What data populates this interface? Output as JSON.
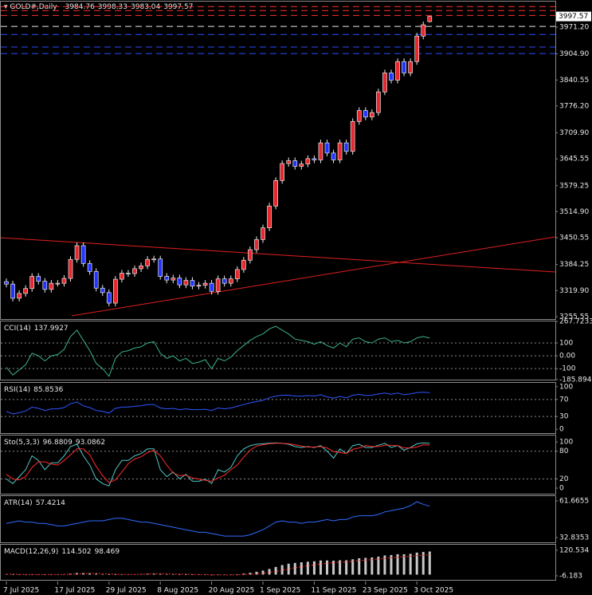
{
  "chart_data": [
    {
      "type": "candlestick",
      "title": "GOLD#,Daily",
      "categories": [
        "7 Jul 2025",
        null,
        null,
        null,
        null,
        null,
        null,
        null,
        "17 Jul 2025",
        null,
        null,
        null,
        null,
        null,
        null,
        null,
        "29 Jul 2025",
        null,
        null,
        null,
        null,
        null,
        null,
        null,
        "8 Aug 2025",
        null,
        null,
        null,
        null,
        null,
        null,
        null,
        "20 Aug 2025",
        null,
        null,
        null,
        null,
        null,
        null,
        null,
        "1 Sep 2025",
        null,
        null,
        null,
        null,
        null,
        null,
        null,
        "11 Sep 2025",
        null,
        null,
        null,
        null,
        null,
        null,
        null,
        "23 Sep 2025",
        null,
        null,
        null,
        null,
        null,
        null,
        null,
        "3 Oct 2025",
        null,
        null
      ],
      "open": [
        3342,
        3336,
        3301,
        3313,
        3325,
        3355,
        3343,
        3323,
        3338,
        3338,
        3350,
        3397,
        3431,
        3387,
        3367,
        3326,
        3315,
        3289,
        3348,
        3363,
        3362,
        3374,
        3381,
        3397,
        3398,
        3355,
        3346,
        3351,
        3334,
        3345,
        3331,
        3333,
        3338,
        3318,
        3349,
        3338,
        3349,
        3372,
        3395,
        3421,
        3446,
        3475,
        3529,
        3592,
        3634,
        3641,
        3627,
        3633,
        3646,
        3643,
        3685,
        3660,
        3643,
        3685,
        3664,
        3738,
        3765,
        3749,
        3760,
        3811,
        3858,
        3840,
        3886,
        3858,
        3886,
        3949,
        3984.76
      ],
      "high": [
        3350,
        3344,
        3321,
        3333,
        3363,
        3363,
        3351,
        3346,
        3346,
        3358,
        3405,
        3439,
        3439,
        3395,
        3375,
        3334,
        3323,
        3356,
        3371,
        3371,
        3382,
        3389,
        3405,
        3406,
        3406,
        3363,
        3359,
        3359,
        3353,
        3353,
        3341,
        3346,
        3346,
        3357,
        3357,
        3357,
        3380,
        3403,
        3429,
        3454,
        3483,
        3537,
        3600,
        3642,
        3649,
        3649,
        3641,
        3654,
        3654,
        3693,
        3693,
        3668,
        3693,
        3693,
        3746,
        3773,
        3773,
        3768,
        3819,
        3866,
        3866,
        3894,
        3894,
        3894,
        3957,
        3985,
        3998.33
      ],
      "low": [
        3328,
        3293,
        3293,
        3305,
        3317,
        3335,
        3315,
        3315,
        3330,
        3330,
        3342,
        3389,
        3379,
        3359,
        3318,
        3307,
        3281,
        3281,
        3340,
        3354,
        3354,
        3366,
        3373,
        3389,
        3347,
        3338,
        3338,
        3326,
        3326,
        3323,
        3323,
        3325,
        3310,
        3310,
        3330,
        3330,
        3341,
        3364,
        3387,
        3413,
        3438,
        3467,
        3521,
        3584,
        3626,
        3619,
        3619,
        3625,
        3635,
        3635,
        3652,
        3635,
        3635,
        3656,
        3656,
        3730,
        3741,
        3741,
        3752,
        3803,
        3832,
        3832,
        3850,
        3850,
        3878,
        3941,
        3983.04
      ],
      "close": [
        3336,
        3301,
        3313,
        3325,
        3355,
        3343,
        3323,
        3338,
        3338,
        3350,
        3397,
        3431,
        3387,
        3367,
        3326,
        3315,
        3289,
        3348,
        3363,
        3362,
        3374,
        3381,
        3397,
        3398,
        3355,
        3346,
        3351,
        3334,
        3345,
        3331,
        3333,
        3338,
        3318,
        3349,
        3338,
        3349,
        3372,
        3395,
        3421,
        3446,
        3475,
        3529,
        3592,
        3634,
        3641,
        3627,
        3633,
        3646,
        3643,
        3685,
        3660,
        3643,
        3685,
        3664,
        3738,
        3765,
        3749,
        3760,
        3811,
        3858,
        3840,
        3886,
        3858,
        3886,
        3949,
        3977,
        3997.57
      ],
      "up_color": "#e8262e",
      "down_color": "#2233ff",
      "ylim": [
        3249.6,
        4034.3
      ],
      "yticks": [
        {
          "value": 3255.55,
          "label": "3255.55"
        },
        {
          "value": 3319.9,
          "label": "3319.90"
        },
        {
          "value": 3384.25,
          "label": "3384.25"
        },
        {
          "value": 3450.55,
          "label": "3450.55"
        },
        {
          "value": 3514.9,
          "label": "3514.90"
        },
        {
          "value": 3579.25,
          "label": "3579.25"
        },
        {
          "value": 3645.55,
          "label": "3645.55"
        },
        {
          "value": 3709.9,
          "label": "3709.90"
        },
        {
          "value": 3776.2,
          "label": "3776.20"
        },
        {
          "value": 3840.55,
          "label": "3840.55"
        },
        {
          "value": 3904.9,
          "label": "3904.90"
        },
        {
          "value": 3971.2,
          "label": "3971.20"
        }
      ],
      "levels": [
        {
          "value": 4022,
          "color": "#ff3030"
        },
        {
          "value": 4012,
          "color": "#ff3030"
        },
        {
          "value": 4000,
          "color": "#ff3030"
        },
        {
          "value": 3973,
          "color": "#e8e8e8"
        },
        {
          "value": 3953,
          "color": "#2a4dff"
        },
        {
          "value": 3922,
          "color": "#2a4dff"
        },
        {
          "value": 3906,
          "color": "#2a4dff"
        }
      ]
    },
    {
      "type": "line",
      "title": "CCI(14)",
      "grid": true,
      "ylim": [
        -185.8945,
        267.7233
      ],
      "yticks": [
        -185.8945,
        -100,
        {
          "value": 0,
          "label": "0.00"
        },
        100,
        267.7233
      ],
      "series": [
        {
          "color": "#3bb08f",
          "style": "line",
          "values": [
            -90,
            -150,
            -110,
            -70,
            20,
            0,
            -40,
            0,
            10,
            50,
            150,
            200,
            120,
            40,
            -60,
            -100,
            -160,
            -20,
            30,
            40,
            60,
            70,
            100,
            110,
            20,
            -20,
            0,
            -40,
            -20,
            -60,
            -50,
            -30,
            -100,
            -20,
            -40,
            -10,
            40,
            80,
            120,
            150,
            170,
            210,
            230,
            200,
            170,
            130,
            120,
            110,
            90,
            110,
            80,
            60,
            100,
            70,
            130,
            140,
            110,
            100,
            130,
            140,
            110,
            120,
            100,
            110,
            140,
            150,
            137.9927
          ]
        }
      ]
    },
    {
      "type": "line",
      "title": "RSI(14)",
      "grid": true,
      "ylim": [
        -9,
        109
      ],
      "yticks": [
        0,
        30,
        70,
        100
      ],
      "series": [
        {
          "color": "#2f55ff",
          "style": "line",
          "values": [
            42,
            36,
            39,
            43,
            52,
            49,
            44,
            48,
            48,
            51,
            60,
            64,
            55,
            51,
            44,
            42,
            38,
            49,
            52,
            52,
            54,
            55,
            58,
            58,
            50,
            48,
            49,
            46,
            48,
            46,
            46,
            47,
            44,
            50,
            48,
            50,
            54,
            58,
            62,
            65,
            68,
            74,
            78,
            80,
            80,
            78,
            78,
            79,
            78,
            81,
            76,
            73,
            77,
            74,
            80,
            82,
            79,
            80,
            83,
            85,
            82,
            85,
            81,
            83,
            86,
            87,
            85.8536
          ]
        }
      ]
    },
    {
      "type": "line",
      "title": "Sto(5,3,3)",
      "grid": true,
      "ylim": [
        -12,
        114
      ],
      "yticks": [
        0,
        20,
        80,
        100
      ],
      "series": [
        {
          "color": "#4fc6c4",
          "style": "line",
          "values": [
            20,
            10,
            25,
            40,
            70,
            60,
            40,
            55,
            55,
            70,
            90,
            95,
            70,
            50,
            20,
            10,
            5,
            40,
            60,
            60,
            70,
            75,
            85,
            85,
            40,
            25,
            35,
            20,
            30,
            15,
            15,
            20,
            10,
            40,
            35,
            45,
            70,
            85,
            92,
            95,
            96,
            97,
            98,
            97,
            95,
            90,
            88,
            90,
            88,
            92,
            80,
            65,
            85,
            75,
            92,
            95,
            88,
            88,
            93,
            97,
            88,
            92,
            82,
            88,
            96,
            98,
            96.8809
          ]
        },
        {
          "color": "#ff2a2a",
          "style": "line",
          "values": [
            30,
            20,
            18,
            25,
            45,
            57,
            57,
            52,
            50,
            60,
            72,
            85,
            85,
            72,
            47,
            27,
            12,
            18,
            35,
            53,
            63,
            68,
            77,
            82,
            70,
            50,
            33,
            27,
            28,
            22,
            20,
            17,
            15,
            22,
            28,
            40,
            50,
            67,
            82,
            91,
            94,
            96,
            97,
            97,
            96,
            94,
            91,
            89,
            89,
            90,
            87,
            79,
            77,
            75,
            84,
            87,
            92,
            90,
            90,
            93,
            93,
            92,
            87,
            87,
            89,
            94,
            93.0862
          ]
        }
      ]
    },
    {
      "type": "line",
      "title": "ATR(14)",
      "grid": false,
      "ylim": [
        29.07,
        65.43
      ],
      "yticks": [
        32.8353,
        61.6655
      ],
      "series": [
        {
          "color": "#2f6cff",
          "style": "line",
          "values": [
            44,
            45,
            46,
            45,
            45,
            44,
            44,
            43,
            42,
            42,
            43,
            44,
            45,
            46,
            46,
            46,
            47,
            48,
            48,
            47,
            46,
            45,
            45,
            44,
            43,
            42,
            41,
            40,
            39,
            38,
            37,
            37,
            36,
            35,
            34,
            34,
            34,
            34,
            35,
            37,
            39,
            42,
            45,
            46,
            45,
            45,
            44,
            45,
            45,
            46,
            47,
            46,
            47,
            47,
            49,
            50,
            50,
            50,
            51,
            53,
            54,
            55,
            56,
            58,
            61,
            59,
            57.4214
          ]
        }
      ]
    },
    {
      "type": "bar",
      "title": "MACD(12,26,9)",
      "grid": false,
      "ylim": [
        -26,
        148
      ],
      "yticks": [
        -6.183,
        120.534
      ],
      "series": [
        {
          "color": "#c8c8c8",
          "style": "bar",
          "values": [
            2,
            0,
            -1,
            -1,
            0,
            1,
            0,
            0,
            1,
            2,
            5,
            8,
            8,
            7,
            4,
            1,
            -2,
            -1,
            0,
            1,
            2,
            3,
            5,
            6,
            4,
            2,
            1,
            0,
            0,
            -1,
            -2,
            -2,
            -3,
            -2,
            -2,
            -1,
            2,
            5,
            9,
            14,
            20,
            28,
            38,
            47,
            54,
            58,
            61,
            64,
            66,
            70,
            70,
            69,
            71,
            71,
            76,
            81,
            83,
            85,
            89,
            95,
            97,
            101,
            101,
            103,
            109,
            112,
            114.502
          ]
        },
        {
          "color": "#ff2a2a",
          "style": "dotted",
          "values": [
            3,
            2,
            1,
            0,
            0,
            0,
            0,
            0,
            1,
            1,
            2,
            3,
            5,
            6,
            6,
            5,
            3,
            2,
            1,
            1,
            1,
            2,
            3,
            4,
            4,
            4,
            3,
            2,
            2,
            1,
            0,
            0,
            -1,
            -1,
            -2,
            -2,
            -1,
            0,
            2,
            4,
            7,
            11,
            16,
            22,
            28,
            34,
            39,
            44,
            48,
            53,
            56,
            59,
            61,
            63,
            66,
            69,
            72,
            74,
            77,
            80,
            83,
            86,
            89,
            91,
            94,
            96,
            98.469
          ]
        }
      ]
    }
  ]
}
